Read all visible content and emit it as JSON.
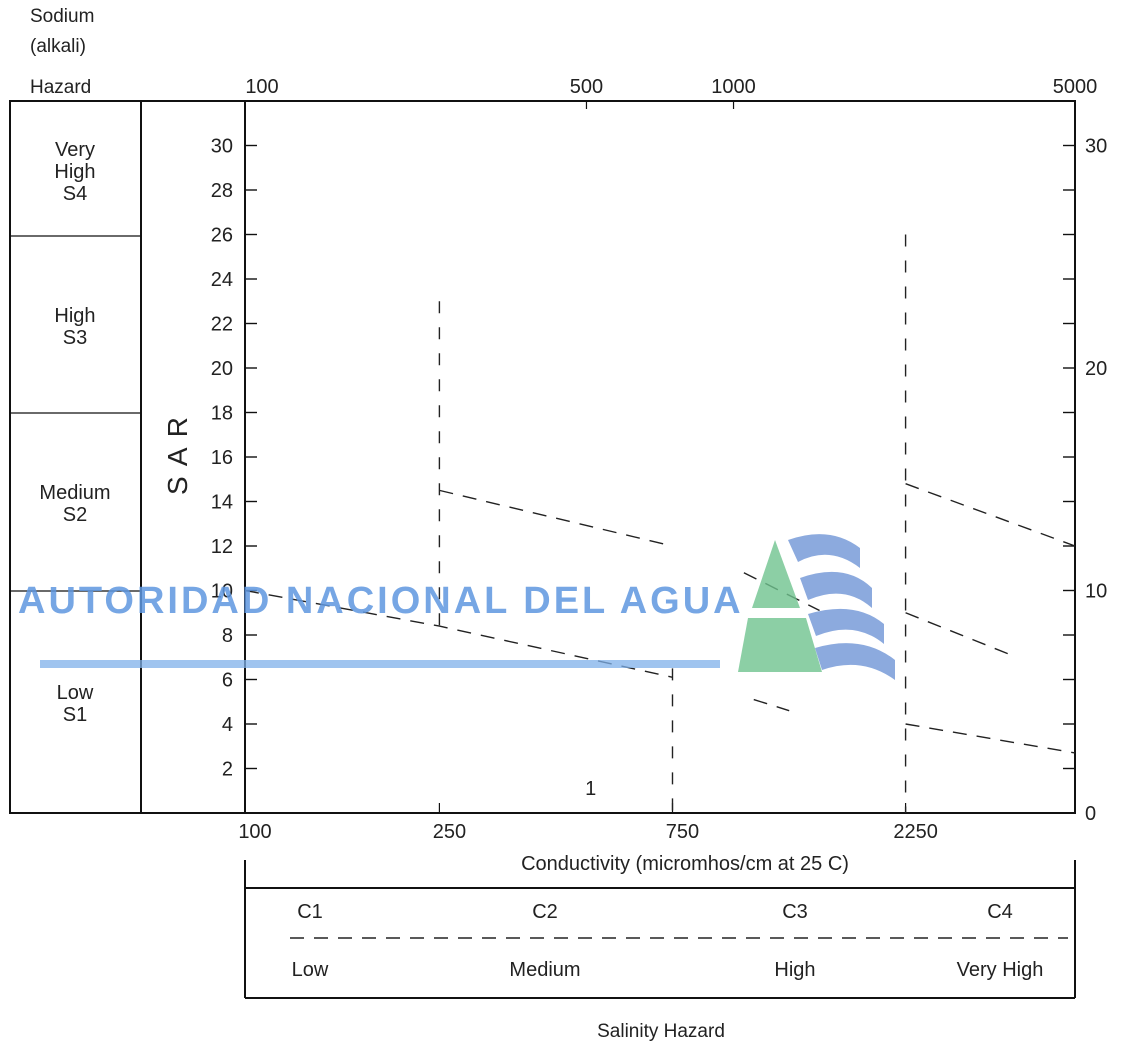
{
  "chart_data": {
    "type": "scatter",
    "title": "",
    "sodium_hazard_title": "Sodium (alkali) Hazard",
    "ylabel": "S A R",
    "xlabel": "Conductivity (micromhos/cm at 25 C)",
    "bottom_title": "Salinity Hazard",
    "x_scale": "log",
    "xlim": [
      100,
      5000
    ],
    "ylim": [
      0,
      32
    ],
    "top_x_ticks": [
      "100",
      "500",
      "1000",
      "5000"
    ],
    "bottom_x_ticks": [
      "100",
      "250",
      "750",
      "2250"
    ],
    "sar_ticks": [
      "2",
      "4",
      "6",
      "8",
      "10",
      "12",
      "14",
      "16",
      "18",
      "20",
      "22",
      "24",
      "26",
      "28",
      "30"
    ],
    "right_ticks": [
      "0",
      "10",
      "20",
      "30"
    ],
    "sodium_classes": [
      {
        "name": "Very High",
        "code": "S4"
      },
      {
        "name": "High",
        "code": "S3"
      },
      {
        "name": "Medium",
        "code": "S2"
      },
      {
        "name": "Low",
        "code": "S1"
      }
    ],
    "salinity_classes": [
      {
        "code": "C1",
        "name": "Low"
      },
      {
        "code": "C2",
        "name": "Medium"
      },
      {
        "code": "C3",
        "name": "High"
      },
      {
        "code": "C4",
        "name": "Very High"
      }
    ],
    "class_boundaries_conductivity": [
      250,
      750,
      2250
    ],
    "sar_boundary_lines": [
      {
        "x": [
          100,
          250,
          750
        ],
        "y": [
          10,
          8.4,
          6.1
        ]
      },
      {
        "x": [
          250,
          750
        ],
        "y": [
          14.5,
          12
        ]
      },
      {
        "x": [
          1100,
          1300
        ],
        "y": [
          5.1,
          4.6
        ]
      },
      {
        "x": [
          1050,
          1500
        ],
        "y": [
          10.8,
          9.1
        ]
      },
      {
        "x": [
          2250,
          5000
        ],
        "y": [
          4,
          2.7
        ]
      },
      {
        "x": [
          2250,
          3800
        ],
        "y": [
          9,
          7
        ]
      },
      {
        "x": [
          2250,
          5000
        ],
        "y": [
          14.8,
          12
        ]
      }
    ],
    "sample_points": [
      {
        "label": "1",
        "x": 510,
        "y": 0.8
      }
    ],
    "watermark": "AUTORIDAD NACIONAL DEL AGUA"
  }
}
